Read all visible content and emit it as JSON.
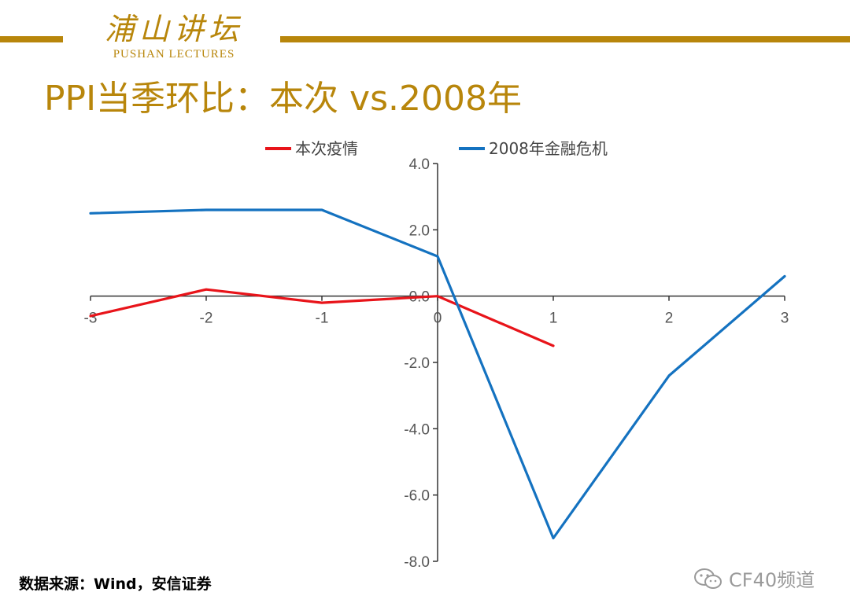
{
  "header": {
    "logo_cn": "浦山讲坛",
    "logo_en": "PUSHAN LECTURES",
    "accent_color": "#b8860b"
  },
  "title": "PPI当季环比：本次 vs.2008年",
  "source": "数据来源：Wind，安信证券",
  "watermark": {
    "icon": "wechat-icon",
    "text": "CF40频道"
  },
  "chart_data": {
    "type": "line",
    "title": "",
    "xlabel": "",
    "ylabel": "",
    "x": [
      -3,
      -2,
      -1,
      0,
      1,
      2,
      3
    ],
    "xlim": [
      -3,
      3
    ],
    "ylim": [
      -8,
      4
    ],
    "x_ticks": [
      "-3",
      "-2",
      "-1",
      "0",
      "1",
      "2",
      "3"
    ],
    "y_ticks": [
      "4.0",
      "2.0",
      "0.0",
      "-2.0",
      "-4.0",
      "-6.0",
      "-8.0"
    ],
    "grid": false,
    "legend_position": "top",
    "series": [
      {
        "name": "本次疫情",
        "color": "#e8141a",
        "x": [
          -3,
          -2,
          -1,
          0,
          1
        ],
        "values": [
          -0.6,
          0.2,
          -0.2,
          0.0,
          -1.5
        ]
      },
      {
        "name": "2008年金融危机",
        "color": "#1472c0",
        "x": [
          -3,
          -2,
          -1,
          0,
          1,
          2,
          3
        ],
        "values": [
          2.5,
          2.6,
          2.6,
          1.2,
          -7.3,
          -2.4,
          0.6
        ]
      }
    ]
  }
}
